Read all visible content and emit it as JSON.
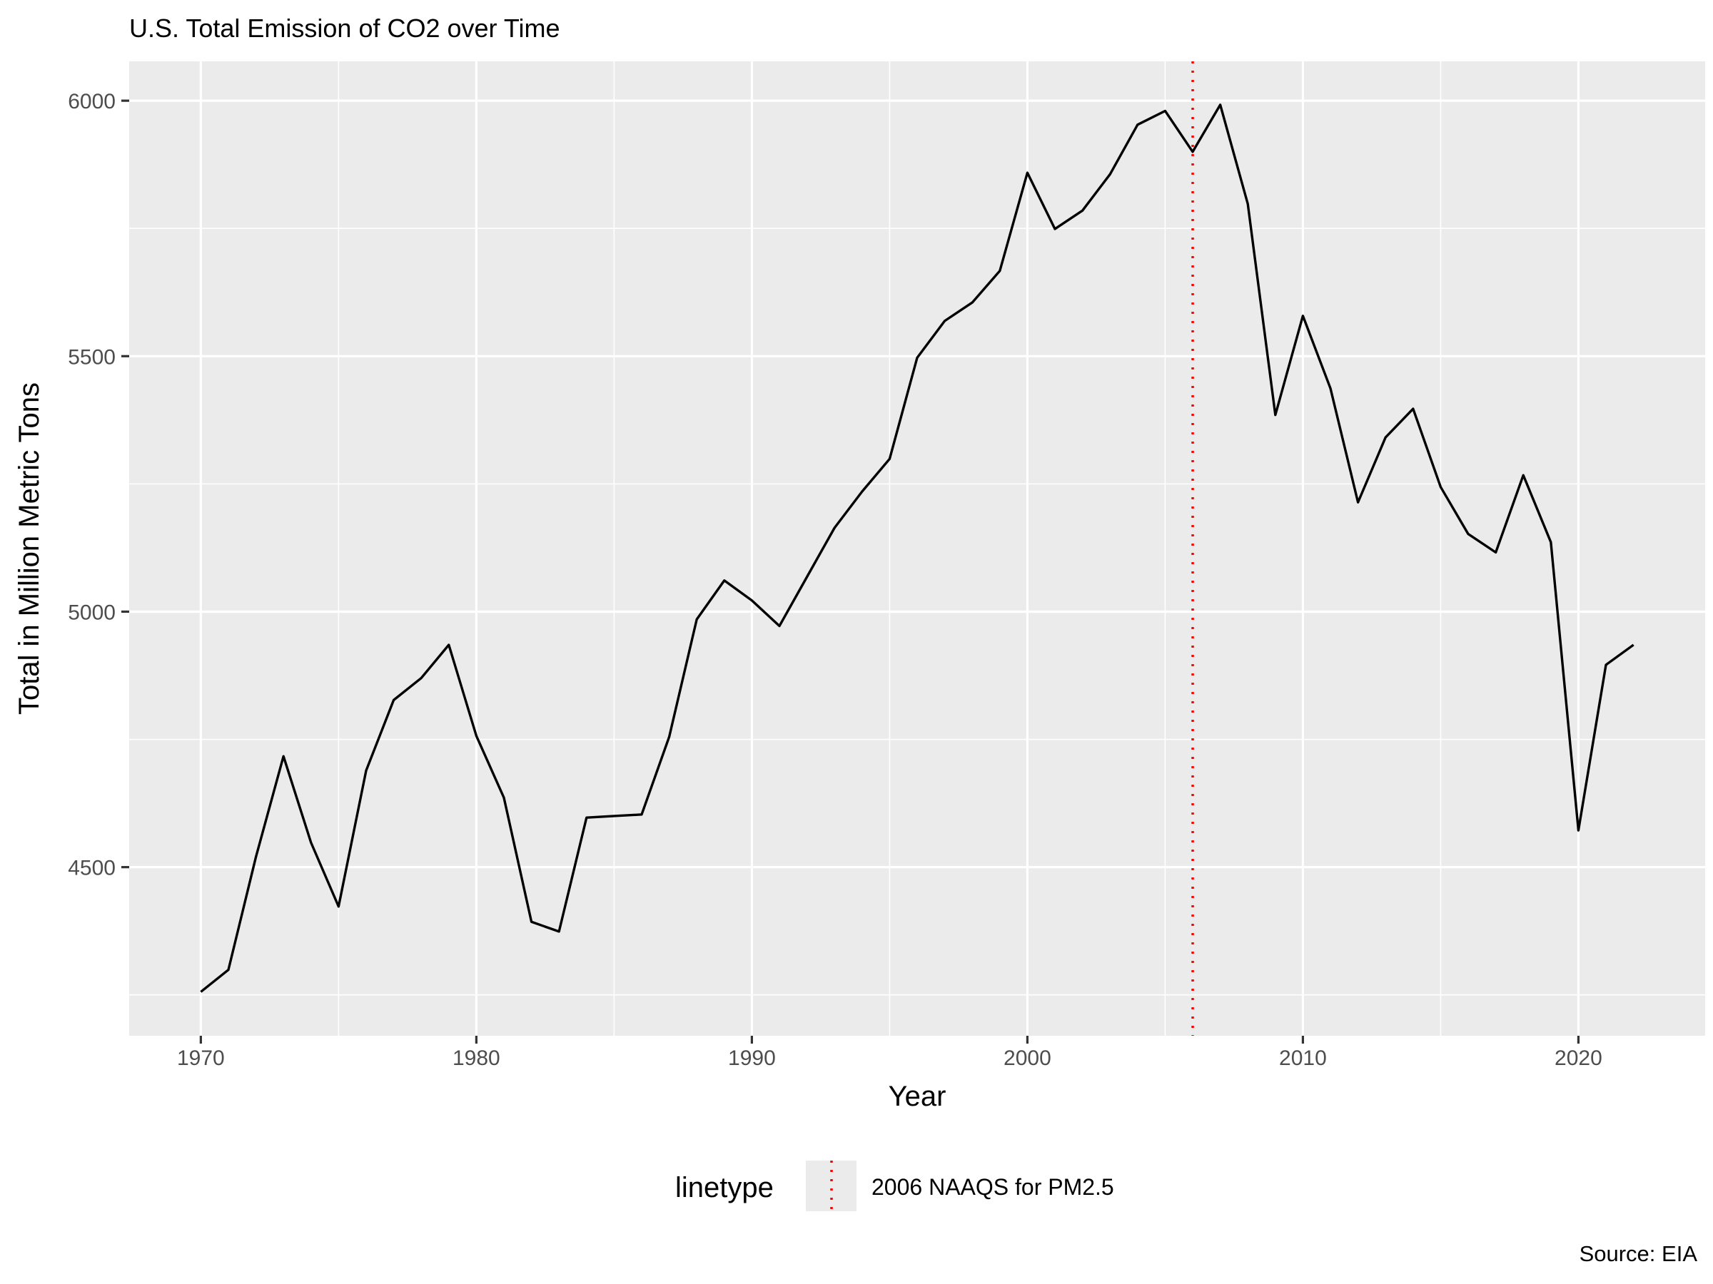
{
  "chart_data": {
    "type": "line",
    "title": "U.S. Total Emission of CO2 over Time",
    "xlabel": "Year",
    "ylabel": "Total in Million Metric Tons",
    "caption": "Source: EIA",
    "xlim": [
      1967.4,
      2024.6
    ],
    "ylim": [
      4170,
      6077
    ],
    "x_ticks": [
      1970,
      1980,
      1990,
      2000,
      2010,
      2020
    ],
    "y_ticks": [
      4500,
      5000,
      5500,
      6000
    ],
    "x_minor_ticks": [
      1975,
      1985,
      1995,
      2005,
      2015
    ],
    "y_minor_ticks": [
      4250,
      4750,
      5250,
      5750
    ],
    "grid": true,
    "series": [
      {
        "color": "#000000",
        "x": [
          1970,
          1971,
          1972,
          1973,
          1974,
          1975,
          1976,
          1977,
          1978,
          1979,
          1980,
          1981,
          1982,
          1983,
          1984,
          1985,
          1986,
          1987,
          1988,
          1989,
          1990,
          1991,
          1992,
          1993,
          1994,
          1995,
          1996,
          1997,
          1998,
          1999,
          2000,
          2001,
          2002,
          2003,
          2004,
          2005,
          2006,
          2007,
          2008,
          2009,
          2010,
          2011,
          2012,
          2013,
          2014,
          2015,
          2016,
          2017,
          2018,
          2019,
          2020,
          2021,
          2022
        ],
        "y": [
          4256,
          4299,
          4520,
          4717,
          4548,
          4423,
          4689,
          4827,
          4870,
          4935,
          4757,
          4636,
          4393,
          4374,
          4597,
          4600,
          4603,
          4755,
          4985,
          5061,
          5022,
          4972,
          5068,
          5164,
          5235,
          5299,
          5497,
          5569,
          5605,
          5667,
          5859,
          5749,
          5785,
          5856,
          5953,
          5980,
          5900,
          5992,
          5798,
          5385,
          5579,
          5437,
          5214,
          5341,
          5397,
          5244,
          5152,
          5116,
          5267,
          5136,
          4572,
          4896,
          4935
        ]
      }
    ],
    "reference_lines": [
      {
        "x": 2006,
        "color": "#ff0000",
        "style": "dotted",
        "label": "2006 NAAQS for PM2.5"
      }
    ],
    "legend": {
      "title": "linetype",
      "position": "bottom",
      "entries": [
        "2006 NAAQS for PM2.5"
      ]
    }
  }
}
